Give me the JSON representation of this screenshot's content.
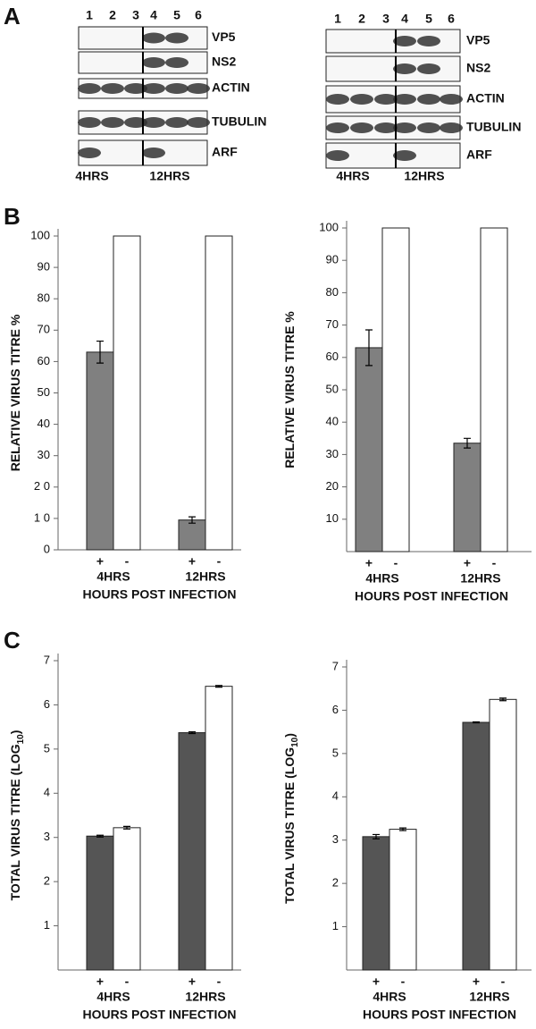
{
  "panel_labels": [
    "A",
    "B",
    "C"
  ],
  "blots": [
    {
      "lanes": [
        "1",
        "2",
        "3",
        "4",
        "5",
        "6"
      ],
      "rows": [
        "VP5",
        "NS2",
        "ACTIN",
        "TUBULIN",
        "ARF"
      ],
      "groups": [
        "4HRS",
        "12HRS"
      ]
    },
    {
      "lanes": [
        "1",
        "2",
        "3",
        "4",
        "5",
        "6"
      ],
      "rows": [
        "VP5",
        "NS2",
        "ACTIN",
        "TUBULIN",
        "ARF"
      ],
      "groups": [
        "4HRS",
        "12HRS"
      ]
    }
  ],
  "chart_data": [
    {
      "type": "bar",
      "ylabel": "RELATIVE VIRUS TITRE %",
      "xlabel": "HOURS POST INFECTION",
      "categories": [
        "4HRS",
        "12HRS"
      ],
      "series": [
        {
          "name": "+",
          "color": "#808080",
          "values": [
            63,
            9.5
          ],
          "errors": [
            3.5,
            1
          ]
        },
        {
          "name": "-",
          "color": "#ffffff",
          "values": [
            100,
            100
          ]
        }
      ],
      "ylim": [
        0,
        100
      ],
      "yticks": [
        0,
        {
          "value": 10,
          "label": "1 0"
        },
        {
          "value": 20,
          "label": "2 0"
        },
        30,
        40,
        50,
        60,
        70,
        80,
        90,
        100
      ]
    },
    {
      "type": "bar",
      "ylabel": "RELATIVE VIRUS TITRE %",
      "xlabel": "HOURS POST INFECTION",
      "categories": [
        "4HRS",
        "12HRS"
      ],
      "series": [
        {
          "name": "+",
          "color": "#808080",
          "values": [
            63,
            33.5
          ],
          "errors": [
            5.5,
            1.5
          ]
        },
        {
          "name": "-",
          "color": "#ffffff",
          "values": [
            100,
            100
          ]
        }
      ],
      "ylim": [
        0,
        100
      ],
      "yticks": [
        10,
        20,
        30,
        40,
        50,
        60,
        70,
        80,
        90,
        100
      ]
    },
    {
      "type": "bar",
      "ylabel": "TOTAL VIRUS TITRE (LOG",
      "ylabel_subscript": "10",
      "ylabel_end": ")",
      "xlabel": "HOURS POST INFECTION",
      "categories": [
        "4HRS",
        "12HRS"
      ],
      "series": [
        {
          "name": "+",
          "color": "#555555",
          "values": [
            3.03,
            5.37
          ],
          "errors": [
            0.02,
            0.02
          ]
        },
        {
          "name": "-",
          "color": "#ffffff",
          "values": [
            3.22,
            6.42
          ],
          "errors": [
            0.03,
            0.02
          ]
        }
      ],
      "ylim": [
        0,
        7
      ],
      "yticks": [
        1,
        2,
        3,
        4,
        5,
        6,
        7
      ]
    },
    {
      "type": "bar",
      "ylabel": "TOTAL VIRUS TITRE (LOG",
      "ylabel_subscript": "10",
      "ylabel_end": ")",
      "xlabel": "HOURS POST INFECTION",
      "categories": [
        "4HRS",
        "12HRS"
      ],
      "series": [
        {
          "name": "+",
          "color": "#555555",
          "values": [
            3.08,
            5.72
          ],
          "errors": [
            0.05,
            0.01
          ]
        },
        {
          "name": "-",
          "color": "#ffffff",
          "values": [
            3.25,
            6.25
          ],
          "errors": [
            0.03,
            0.03
          ]
        }
      ],
      "ylim": [
        0,
        7
      ],
      "yticks": [
        1,
        2,
        3,
        4,
        5,
        6,
        7
      ]
    }
  ]
}
